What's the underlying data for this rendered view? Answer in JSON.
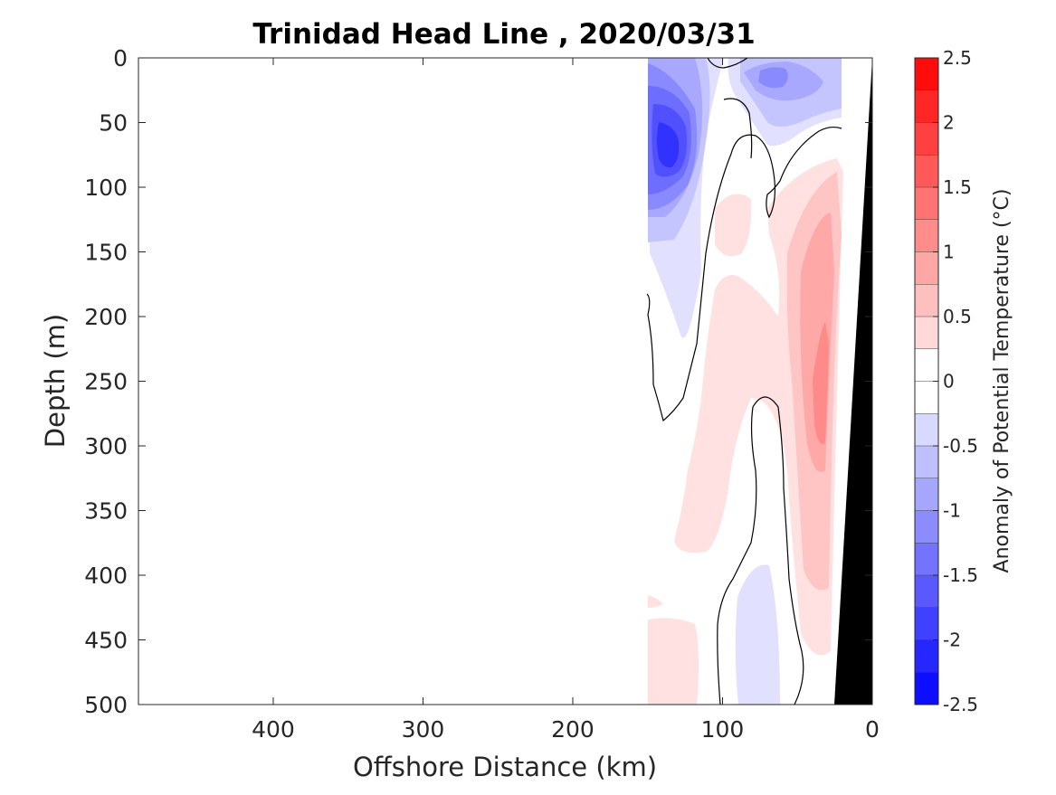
{
  "chart_data": {
    "type": "contour",
    "title": "Trinidad Head Line , 2020/03/31",
    "xlabel": "Offshore Distance (km)",
    "ylabel": "Depth (m)",
    "xlim": [
      490,
      0
    ],
    "ylim": [
      500,
      0
    ],
    "x_reversed": true,
    "y_reversed": true,
    "x_ticks": [
      400,
      300,
      200,
      100,
      0
    ],
    "y_ticks": [
      0,
      50,
      100,
      150,
      200,
      250,
      300,
      350,
      400,
      450,
      500
    ],
    "colorbar": {
      "label": "Anomaly of Potential Temperature (°C)",
      "range": [
        -2.5,
        2.5
      ],
      "step": 0.25,
      "tick_values": [
        2.5,
        2,
        1.5,
        1,
        0.5,
        0,
        -0.5,
        -1,
        -1.5,
        -2,
        -2.5
      ],
      "tick_labels": [
        "2.5",
        "2",
        "1.5",
        "1",
        "0.5",
        "0",
        "-0.5",
        "-1",
        "-1.5",
        "-2",
        "-2.5"
      ],
      "color_negative_end": "#0000ff",
      "color_positive_end": "#ff0000",
      "color_mid": "#ffffff"
    },
    "data_extent_km": [
      150,
      0
    ],
    "zero_contour_color": "#000000",
    "bathymetry_color": "#000000",
    "grid": false
  }
}
